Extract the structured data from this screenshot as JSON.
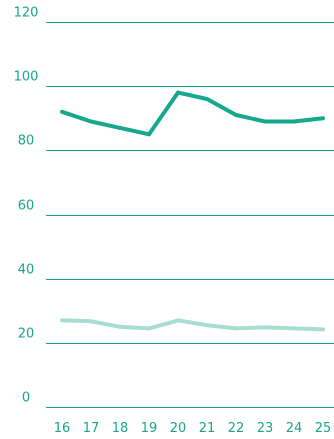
{
  "chart_data": {
    "type": "line",
    "x": [
      "16",
      "17",
      "18",
      "19",
      "20",
      "21",
      "22",
      "23",
      "24",
      "25"
    ],
    "ylim": [
      0,
      120
    ],
    "yticks": [
      "0",
      "20",
      "40",
      "60",
      "80",
      "100",
      "120"
    ],
    "grid": "horizontal",
    "series": [
      {
        "values": [
          92,
          89,
          87,
          85,
          98,
          96,
          91,
          89,
          89,
          90
        ],
        "color": "#16a88c"
      },
      {
        "values": [
          27,
          26.7,
          25,
          24.5,
          27,
          25.5,
          24.5,
          24.8,
          24.5,
          24.2
        ],
        "color": "#a8ded1"
      }
    ],
    "colors": {
      "grid": "#16a085",
      "tick_text": "#1aa58a"
    }
  }
}
